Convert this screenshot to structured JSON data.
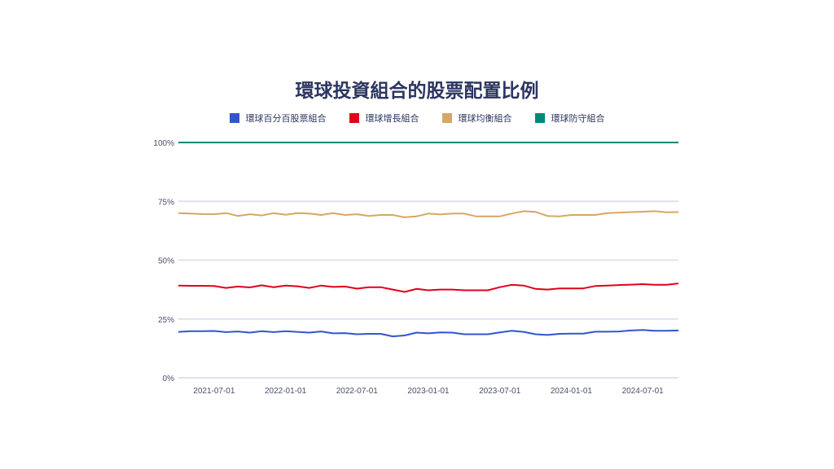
{
  "chart_data": {
    "type": "line",
    "title": "環球投資組合的股票配置比例",
    "xlabel": "",
    "ylabel": "",
    "ylim": [
      0,
      100
    ],
    "y_ticks": [
      "0%",
      "25%",
      "50%",
      "75%",
      "100%"
    ],
    "y_tick_values": [
      0,
      25,
      50,
      75,
      100
    ],
    "x_ticks": [
      "2021-07-01",
      "2022-01-01",
      "2022-07-01",
      "2023-01-01",
      "2023-07-01",
      "2024-01-01",
      "2024-07-01"
    ],
    "x_start": "2021-04",
    "x_step": "monthly",
    "grid": true,
    "legend_position": "top-center",
    "series": [
      {
        "name": "環球百分百股票組合",
        "color": "#3355cc",
        "values": [
          19.5,
          19.8,
          19.8,
          19.9,
          19.4,
          19.7,
          19.2,
          19.8,
          19.4,
          19.8,
          19.5,
          19.2,
          19.7,
          18.9,
          19,
          18.5,
          18.7,
          18.7,
          17.6,
          18,
          19.2,
          18.9,
          19.3,
          19.2,
          18.5,
          18.5,
          18.5,
          19.3,
          20,
          19.5,
          18.5,
          18.2,
          18.7,
          18.8,
          18.8,
          19.6,
          19.6,
          19.7,
          20.1,
          20.3,
          20,
          20,
          20.1
        ]
      },
      {
        "name": "環球增長組合",
        "color": "#e0001b",
        "values": [
          39.2,
          39.1,
          39.1,
          39,
          38.2,
          38.8,
          38.4,
          39.3,
          38.5,
          39.2,
          38.9,
          38.2,
          39.2,
          38.6,
          38.8,
          37.9,
          38.5,
          38.5,
          37.5,
          36.5,
          37.8,
          37.2,
          37.5,
          37.5,
          37.2,
          37.2,
          37.2,
          38.5,
          39.5,
          39.2,
          37.8,
          37.5,
          38,
          38,
          38,
          39,
          39.2,
          39.4,
          39.6,
          39.8,
          39.5,
          39.5,
          40.1
        ]
      },
      {
        "name": "環球均衡組合",
        "color": "#d4a862",
        "values": [
          70,
          69.8,
          69.6,
          69.5,
          70,
          68.8,
          69.5,
          69,
          70,
          69.3,
          70,
          69.8,
          69.2,
          70,
          69.2,
          69.5,
          68.8,
          69.2,
          69.2,
          68.2,
          68.6,
          69.8,
          69.4,
          69.8,
          69.8,
          68.6,
          68.6,
          68.6,
          69.8,
          70.8,
          70.5,
          68.8,
          68.6,
          69.2,
          69.2,
          69.2,
          70,
          70.2,
          70.4,
          70.6,
          70.8,
          70.3,
          70.4
        ]
      },
      {
        "name": "環球防守組合",
        "color": "#00897b",
        "values": [
          100,
          100,
          100,
          100,
          100,
          100,
          100,
          100,
          100,
          100,
          100,
          100,
          100,
          100,
          100,
          100,
          100,
          100,
          100,
          100,
          100,
          100,
          100,
          100,
          100,
          100,
          100,
          100,
          100,
          100,
          100,
          100,
          100,
          100,
          100,
          100,
          100,
          100,
          100,
          100,
          100,
          100,
          100
        ]
      }
    ]
  }
}
